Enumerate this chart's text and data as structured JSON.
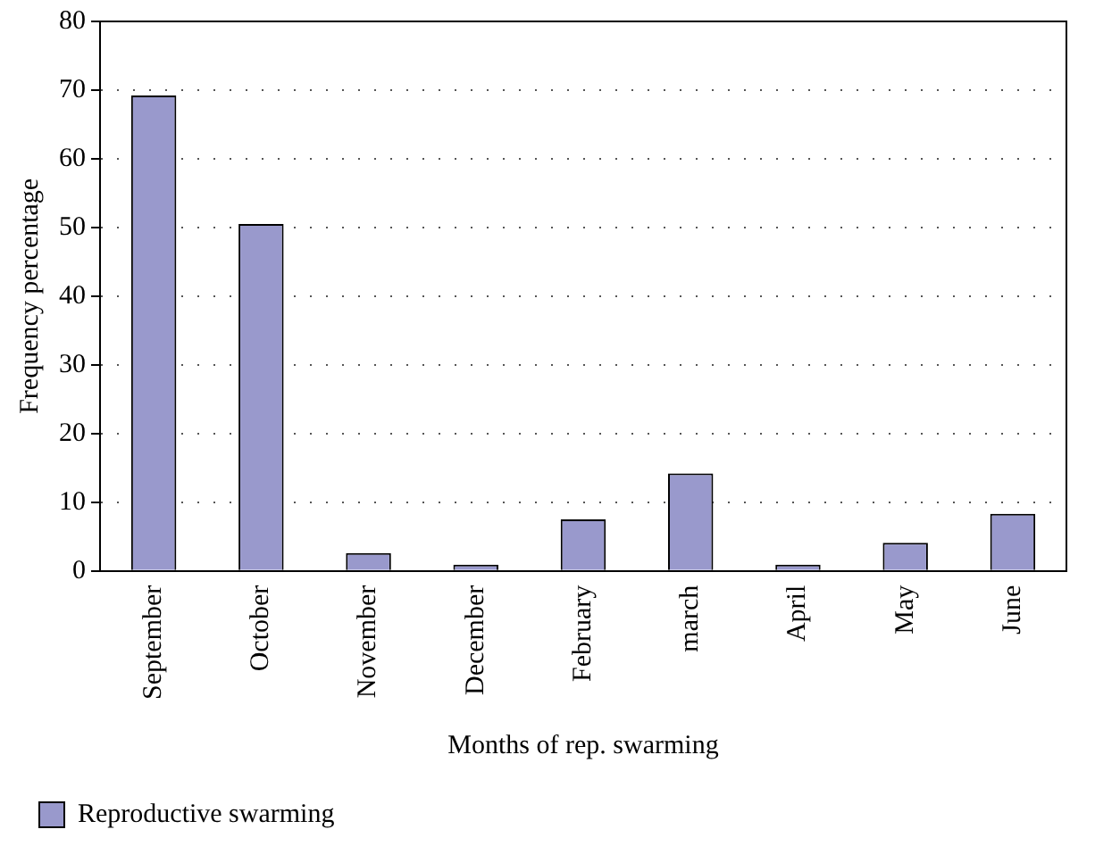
{
  "chart_data": {
    "type": "bar",
    "xlabel": "Months of rep. swarming",
    "ylabel": "Frequency percentage",
    "categories": [
      "September",
      "October",
      "November",
      "December",
      "February",
      "march",
      "April",
      "May",
      "June"
    ],
    "series": [
      {
        "name": "Reproductive swarming",
        "color": "#9999cc",
        "values": [
          69.2,
          50.5,
          2.6,
          0.9,
          7.5,
          14.2,
          0.9,
          4.1,
          8.3
        ]
      }
    ],
    "ylim": [
      0,
      80
    ],
    "yticks": [
      0,
      10,
      20,
      30,
      40,
      50,
      60,
      70,
      80
    ],
    "grid": "y",
    "legend": "bottom left"
  }
}
